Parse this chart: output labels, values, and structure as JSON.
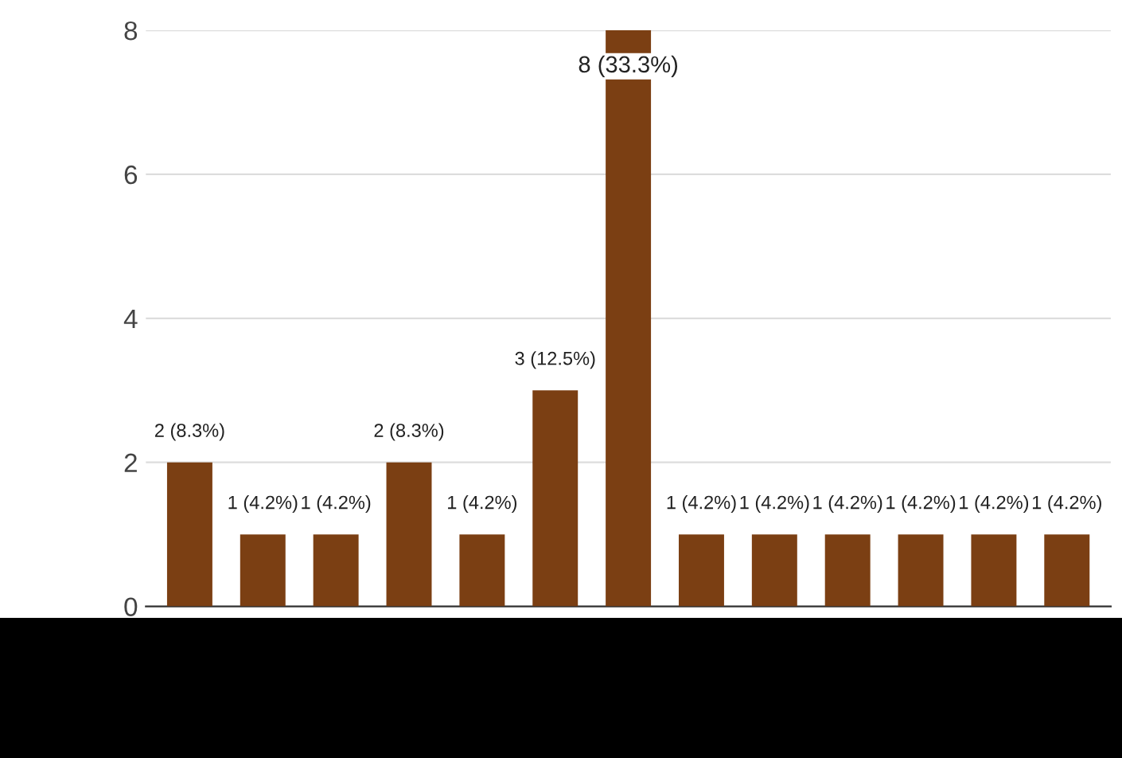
{
  "chart_data": {
    "type": "bar",
    "categories": [
      null,
      null,
      null,
      null,
      null,
      null,
      null,
      null,
      null,
      null,
      null,
      null,
      null
    ],
    "values": [
      2,
      1,
      1,
      2,
      1,
      3,
      8,
      1,
      1,
      1,
      1,
      1,
      1
    ],
    "value_labels": [
      "2 (8.3%)",
      "1 (4.2%)",
      "1 (4.2%)",
      "2 (8.3%)",
      "1 (4.2%)",
      "3 (12.5%)",
      "8 (33.3%)",
      "1 (4.2%)",
      "1 (4.2%)",
      "1 (4.2%)",
      "1 (4.2%)",
      "1 (4.2%)",
      "1 (4.2%)"
    ],
    "color": "#7b3f13",
    "ylim": [
      0,
      8
    ],
    "yticks": [
      0,
      2,
      4,
      6,
      8
    ],
    "grid": "y",
    "tick_labels": "y"
  }
}
